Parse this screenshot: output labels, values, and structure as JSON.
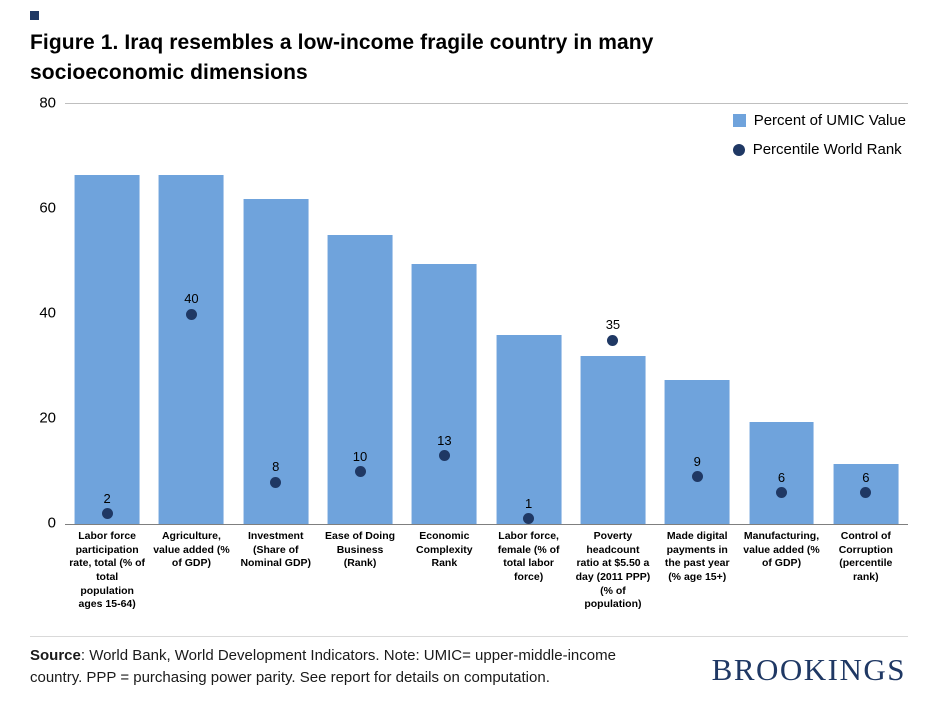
{
  "header": {
    "title": "Figure 1. Iraq resembles a low-income fragile country in many socioeconomic dimensions"
  },
  "legend": {
    "bar_label": "Percent of UMIC Value",
    "dot_label": "Percentile World Rank"
  },
  "chart_data": {
    "type": "bar",
    "title": "Figure 1. Iraq resembles a low-income fragile country in many socioeconomic dimensions",
    "categories": [
      "Labor force participation rate, total (% of total population ages 15-64)",
      "Agriculture, value added (% of GDP)",
      "Investment (Share of Nominal GDP)",
      "Ease of Doing Business (Rank)",
      "Economic Complexity Rank",
      "Labor force, female (% of total labor force)",
      "Poverty headcount ratio at $5.50 a day (2011 PPP) (% of population)",
      "Made digital payments in the past year (% age 15+)",
      "Manufacturing, value added (% of GDP)",
      "Control of Corruption (percentile rank)"
    ],
    "series": [
      {
        "name": "Percent of UMIC Value",
        "type": "bar",
        "values": [
          66.5,
          66.5,
          62,
          55,
          49.5,
          36,
          32,
          27.5,
          19.5,
          11.5
        ]
      },
      {
        "name": "Percentile World Rank",
        "type": "point",
        "values": [
          2,
          40,
          8,
          10,
          13,
          1,
          35,
          9,
          6,
          6
        ]
      }
    ],
    "ylim": [
      0,
      80
    ],
    "yticks": [
      0,
      20,
      40,
      60,
      80
    ],
    "grid": "top-border-only",
    "legend_position": "top-right",
    "colors": {
      "bar": "#6FA3DC",
      "dot": "#1F3864"
    }
  },
  "footer": {
    "source_label": "Source",
    "source_text": ": World Bank, World Development Indicators. Note: UMIC= upper-middle-income country. PPP = purchasing power parity. See report for details on computation.",
    "logo": "BROOKINGS",
    "logo_color": "#1F3864"
  }
}
